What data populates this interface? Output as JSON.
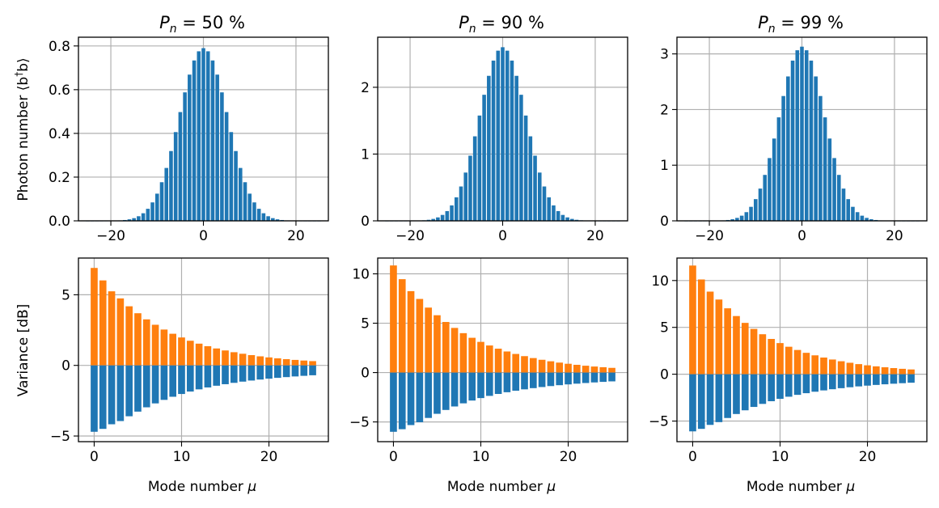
{
  "chart_data": {
    "type": "bar",
    "colors": {
      "blue": "#1f77b4",
      "orange": "#ff7f0e",
      "grid": "#b0b0b0"
    },
    "xlabel_prefix": "Mode number ",
    "xlabel_symbol": "μ",
    "panels_top": [
      {
        "title_var": "P",
        "title_sub": "n",
        "title_value": " = 50 %",
        "ylabel_text": "Photon number ⟨b",
        "ylabel_sup": "†",
        "ylabel_end": "b⟩",
        "xlim": [
          -27,
          27
        ],
        "ylim": [
          0,
          0.84
        ],
        "xticks": [
          -20,
          0,
          20
        ],
        "yticks": [
          0.0,
          0.2,
          0.4,
          0.6,
          0.8
        ],
        "ytick_labels": [
          "0.0",
          "0.2",
          "0.4",
          "0.6",
          "0.8"
        ],
        "xtick_labels": [
          "−20",
          "0",
          "20"
        ],
        "peak": 0.79,
        "width": 5.2,
        "bar_x_start": -25,
        "bar_x_end": 25
      },
      {
        "title_var": "P",
        "title_sub": "n",
        "title_value": " = 90 %",
        "xlim": [
          -27,
          27
        ],
        "ylim": [
          0,
          2.75
        ],
        "xticks": [
          -20,
          0,
          20
        ],
        "yticks": [
          0,
          1,
          2
        ],
        "ytick_labels": [
          "0",
          "1",
          "2"
        ],
        "xtick_labels": [
          "−20",
          "0",
          "20"
        ],
        "peak": 2.6,
        "width": 5.0,
        "bar_x_start": -25,
        "bar_x_end": 25
      },
      {
        "title_var": "P",
        "title_sub": "n",
        "title_value": " = 99 %",
        "xlim": [
          -27,
          27
        ],
        "ylim": [
          0,
          3.3
        ],
        "xticks": [
          -20,
          0,
          20
        ],
        "yticks": [
          0,
          1,
          2,
          3
        ],
        "ytick_labels": [
          "0",
          "1",
          "2",
          "3"
        ],
        "xtick_labels": [
          "−20",
          "0",
          "20"
        ],
        "peak": 3.13,
        "width": 4.9,
        "bar_x_start": -25,
        "bar_x_end": 25
      }
    ],
    "panels_bottom": [
      {
        "ylabel": "Variance [dB]",
        "xlim": [
          -1.8,
          26.8
        ],
        "ylim": [
          -5.4,
          7.6
        ],
        "xticks": [
          0,
          10,
          20
        ],
        "xtick_labels": [
          "0",
          "10",
          "20"
        ],
        "yticks": [
          -5,
          0,
          5
        ],
        "ytick_labels": [
          "−5",
          "0",
          "5"
        ],
        "modes_start": 0,
        "modes_end": 25,
        "anti_max": 6.9,
        "sq_max": -4.7,
        "decay": 8.0
      },
      {
        "xlim": [
          -1.8,
          26.8
        ],
        "ylim": [
          -7.0,
          11.6
        ],
        "xticks": [
          0,
          10,
          20
        ],
        "xtick_labels": [
          "0",
          "10",
          "20"
        ],
        "yticks": [
          -5,
          0,
          5,
          10
        ],
        "ytick_labels": [
          "−5",
          "0",
          "5",
          "10"
        ],
        "modes_start": 0,
        "modes_end": 25,
        "anti_max": 10.85,
        "sq_max": -6.0,
        "decay": 8.0
      },
      {
        "xlim": [
          -1.8,
          26.8
        ],
        "ylim": [
          -7.2,
          12.4
        ],
        "xticks": [
          0,
          10,
          20
        ],
        "xtick_labels": [
          "0",
          "10",
          "20"
        ],
        "yticks": [
          -5,
          0,
          5,
          10
        ],
        "ytick_labels": [
          "−5",
          "0",
          "5",
          "10"
        ],
        "modes_start": 0,
        "modes_end": 25,
        "anti_max": 11.6,
        "sq_max": -6.1,
        "decay": 8.0
      }
    ]
  }
}
